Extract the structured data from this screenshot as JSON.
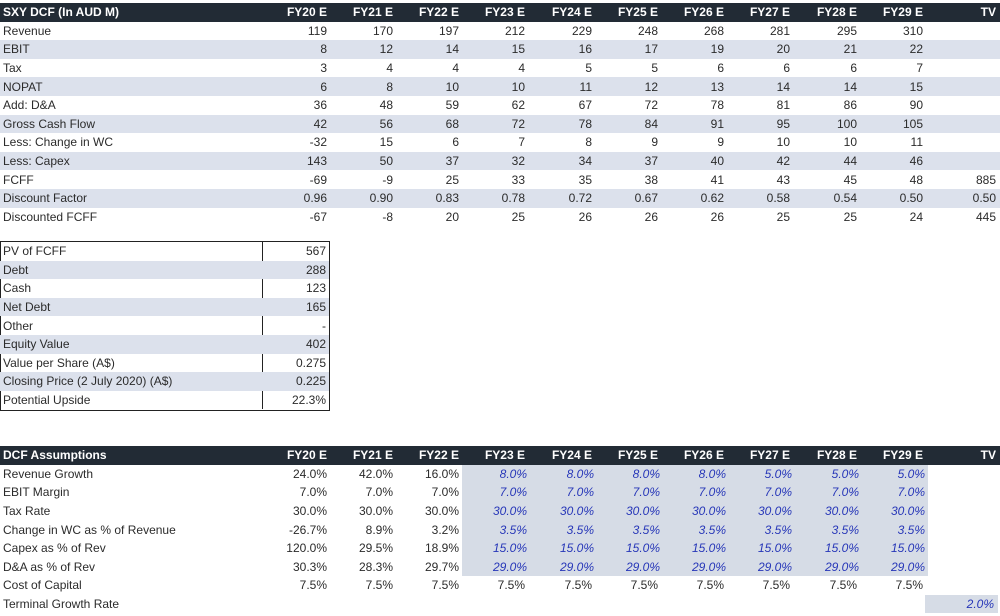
{
  "dcf": {
    "title": "SXY DCF (In AUD M)",
    "years": [
      "FY20 E",
      "FY21 E",
      "FY22 E",
      "FY23 E",
      "FY24 E",
      "FY25 E",
      "FY26 E",
      "FY27 E",
      "FY28 E",
      "FY29 E",
      "TV"
    ],
    "rows": [
      {
        "label": "Revenue",
        "values": [
          "119",
          "170",
          "197",
          "212",
          "229",
          "248",
          "268",
          "281",
          "295",
          "310",
          ""
        ]
      },
      {
        "label": "EBIT",
        "values": [
          "8",
          "12",
          "14",
          "15",
          "16",
          "17",
          "19",
          "20",
          "21",
          "22",
          ""
        ]
      },
      {
        "label": "Tax",
        "values": [
          "3",
          "4",
          "4",
          "4",
          "5",
          "5",
          "6",
          "6",
          "6",
          "7",
          ""
        ]
      },
      {
        "label": "NOPAT",
        "values": [
          "6",
          "8",
          "10",
          "10",
          "11",
          "12",
          "13",
          "14",
          "14",
          "15",
          ""
        ]
      },
      {
        "label": "Add: D&A",
        "values": [
          "36",
          "48",
          "59",
          "62",
          "67",
          "72",
          "78",
          "81",
          "86",
          "90",
          ""
        ]
      },
      {
        "label": "Gross Cash Flow",
        "values": [
          "42",
          "56",
          "68",
          "72",
          "78",
          "84",
          "91",
          "95",
          "100",
          "105",
          ""
        ]
      },
      {
        "label": "Less: Change in WC",
        "values": [
          "-32",
          "15",
          "6",
          "7",
          "8",
          "9",
          "9",
          "10",
          "10",
          "11",
          ""
        ]
      },
      {
        "label": "Less: Capex",
        "values": [
          "143",
          "50",
          "37",
          "32",
          "34",
          "37",
          "40",
          "42",
          "44",
          "46",
          ""
        ]
      },
      {
        "label": "FCFF",
        "values": [
          "-69",
          "-9",
          "25",
          "33",
          "35",
          "38",
          "41",
          "43",
          "45",
          "48",
          "885"
        ]
      },
      {
        "label": "Discount Factor",
        "values": [
          "0.96",
          "0.90",
          "0.83",
          "0.78",
          "0.72",
          "0.67",
          "0.62",
          "0.58",
          "0.54",
          "0.50",
          "0.50"
        ]
      },
      {
        "label": "Discounted FCFF",
        "values": [
          "-67",
          "-8",
          "20",
          "25",
          "26",
          "26",
          "26",
          "25",
          "25",
          "24",
          "445"
        ]
      }
    ]
  },
  "valuation": {
    "rows": [
      {
        "label": "PV of FCFF",
        "value": "567"
      },
      {
        "label": "Debt",
        "value": "288"
      },
      {
        "label": "Cash",
        "value": "123"
      },
      {
        "label": "Net Debt",
        "value": "165"
      },
      {
        "label": "Other",
        "value": "-"
      },
      {
        "label": "Equity Value",
        "value": "402"
      },
      {
        "label": "Value per Share (A$)",
        "value": "0.275"
      },
      {
        "label": "Closing Price (2 July 2020) (A$)",
        "value": "0.225"
      },
      {
        "label": "Potential Upside",
        "value": "22.3%"
      }
    ]
  },
  "assumptions": {
    "title": "DCF Assumptions",
    "years": [
      "FY20 E",
      "FY21 E",
      "FY22 E",
      "FY23 E",
      "FY24 E",
      "FY25 E",
      "FY26 E",
      "FY27 E",
      "FY28 E",
      "FY29 E",
      "TV"
    ],
    "rows": [
      {
        "label": "Revenue Growth",
        "values": [
          "24.0%",
          "42.0%",
          "16.0%",
          "8.0%",
          "8.0%",
          "8.0%",
          "8.0%",
          "5.0%",
          "5.0%",
          "5.0%",
          ""
        ]
      },
      {
        "label": "EBIT Margin",
        "values": [
          "7.0%",
          "7.0%",
          "7.0%",
          "7.0%",
          "7.0%",
          "7.0%",
          "7.0%",
          "7.0%",
          "7.0%",
          "7.0%",
          ""
        ]
      },
      {
        "label": "Tax Rate",
        "values": [
          "30.0%",
          "30.0%",
          "30.0%",
          "30.0%",
          "30.0%",
          "30.0%",
          "30.0%",
          "30.0%",
          "30.0%",
          "30.0%",
          ""
        ]
      },
      {
        "label": "Change in WC as % of Revenue",
        "values": [
          "-26.7%",
          "8.9%",
          "3.2%",
          "3.5%",
          "3.5%",
          "3.5%",
          "3.5%",
          "3.5%",
          "3.5%",
          "3.5%",
          ""
        ]
      },
      {
        "label": "Capex as % of Rev",
        "values": [
          "120.0%",
          "29.5%",
          "18.9%",
          "15.0%",
          "15.0%",
          "15.0%",
          "15.0%",
          "15.0%",
          "15.0%",
          "15.0%",
          ""
        ]
      },
      {
        "label": "D&A as % of Rev",
        "values": [
          "30.3%",
          "28.3%",
          "29.7%",
          "29.0%",
          "29.0%",
          "29.0%",
          "29.0%",
          "29.0%",
          "29.0%",
          "29.0%",
          ""
        ]
      },
      {
        "label": "Cost of Capital",
        "values": [
          "7.5%",
          "7.5%",
          "7.5%",
          "7.5%",
          "7.5%",
          "7.5%",
          "7.5%",
          "7.5%",
          "7.5%",
          "7.5%",
          ""
        ]
      }
    ],
    "terminal_growth": {
      "label": "Terminal Growth Rate",
      "value": "2.0%"
    }
  },
  "colors": {
    "header_bg": "#222b35",
    "band": "#dce1ec",
    "projection_bg": "#d6dce6",
    "projection_text": "#2636b8"
  }
}
